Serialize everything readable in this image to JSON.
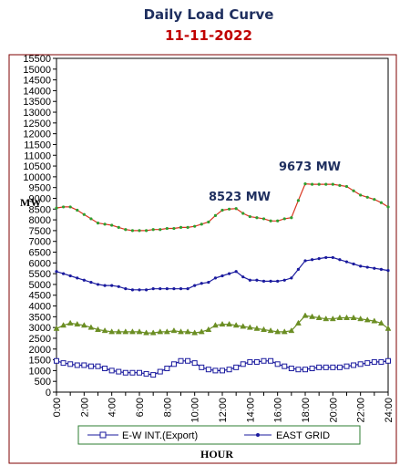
{
  "chart_data": {
    "type": "line",
    "title": "Daily Load Curve",
    "subtitle": "11-11-2022",
    "xlabel": "HOUR",
    "ylabel": "MW",
    "ylim": [
      0,
      15500
    ],
    "ytick_step": 500,
    "xlim": [
      0,
      24
    ],
    "xticks": [
      "0:00",
      "2:00",
      "4:00",
      "6:00",
      "8:00",
      "10:00",
      "12:00",
      "14:00",
      "16:00",
      "18:00",
      "20:00",
      "22:00",
      "24:00"
    ],
    "x": [
      0,
      0.5,
      1,
      1.5,
      2,
      2.5,
      3,
      3.5,
      4,
      4.5,
      5,
      5.5,
      6,
      6.5,
      7,
      7.5,
      8,
      8.5,
      9,
      9.5,
      10,
      10.5,
      11,
      11.5,
      12,
      12.5,
      13,
      13.5,
      14,
      14.5,
      15,
      15.5,
      16,
      16.5,
      17,
      17.5,
      18,
      18.5,
      19,
      19.5,
      20,
      20.5,
      21,
      21.5,
      22,
      22.5,
      23,
      23.5,
      24
    ],
    "series": [
      {
        "name": "E-W INT.(Export)",
        "color": "#1a1a9e",
        "marker": "square",
        "values": [
          1450,
          1350,
          1300,
          1250,
          1250,
          1200,
          1200,
          1100,
          1000,
          950,
          900,
          900,
          900,
          850,
          800,
          950,
          1100,
          1300,
          1450,
          1450,
          1350,
          1150,
          1050,
          1000,
          1000,
          1050,
          1150,
          1300,
          1400,
          1400,
          1450,
          1450,
          1300,
          1200,
          1100,
          1050,
          1050,
          1100,
          1150,
          1150,
          1150,
          1150,
          1200,
          1250,
          1300,
          1350,
          1400,
          1400,
          1450
        ]
      },
      {
        "name": "EAST GRID",
        "color": "#1a1a9e",
        "marker": "dot",
        "values": [
          5600,
          5500,
          5400,
          5300,
          5200,
          5100,
          5000,
          4950,
          4950,
          4900,
          4800,
          4750,
          4750,
          4750,
          4800,
          4800,
          4800,
          4800,
          4800,
          4800,
          4950,
          5050,
          5100,
          5300,
          5400,
          5500,
          5600,
          5350,
          5200,
          5200,
          5150,
          5150,
          5150,
          5200,
          5300,
          5700,
          6100,
          6150,
          6200,
          6250,
          6250,
          6150,
          6050,
          5950,
          5850,
          5800,
          5750,
          5700,
          5650
        ]
      },
      {
        "name": "",
        "color": "#6b8e23",
        "marker": "triangle",
        "values": [
          2950,
          3100,
          3200,
          3150,
          3100,
          3000,
          2900,
          2850,
          2800,
          2800,
          2800,
          2800,
          2800,
          2750,
          2750,
          2800,
          2800,
          2850,
          2800,
          2800,
          2750,
          2800,
          2900,
          3100,
          3150,
          3150,
          3100,
          3050,
          3000,
          2950,
          2900,
          2850,
          2800,
          2800,
          2850,
          3200,
          3550,
          3500,
          3450,
          3400,
          3400,
          3450,
          3450,
          3450,
          3400,
          3350,
          3300,
          3200,
          2950
        ]
      },
      {
        "name": "",
        "color": "#d9341f",
        "marker": "dot-green",
        "values": [
          8550,
          8600,
          8600,
          8450,
          8250,
          8050,
          7850,
          7800,
          7750,
          7650,
          7550,
          7500,
          7500,
          7500,
          7550,
          7550,
          7600,
          7600,
          7650,
          7650,
          7700,
          7800,
          7900,
          8200,
          8450,
          8500,
          8523,
          8300,
          8150,
          8100,
          8050,
          7950,
          7950,
          8050,
          8100,
          8900,
          9673,
          9650,
          9650,
          9650,
          9650,
          9600,
          9550,
          9350,
          9150,
          9050,
          8950,
          8800,
          8600
        ]
      }
    ],
    "annotations": [
      {
        "text": "8523 MW",
        "x": 13,
        "y": 8523
      },
      {
        "text": "9673 MW",
        "x": 18,
        "y": 9673
      }
    ],
    "legend_position": "bottom",
    "grid": false
  }
}
